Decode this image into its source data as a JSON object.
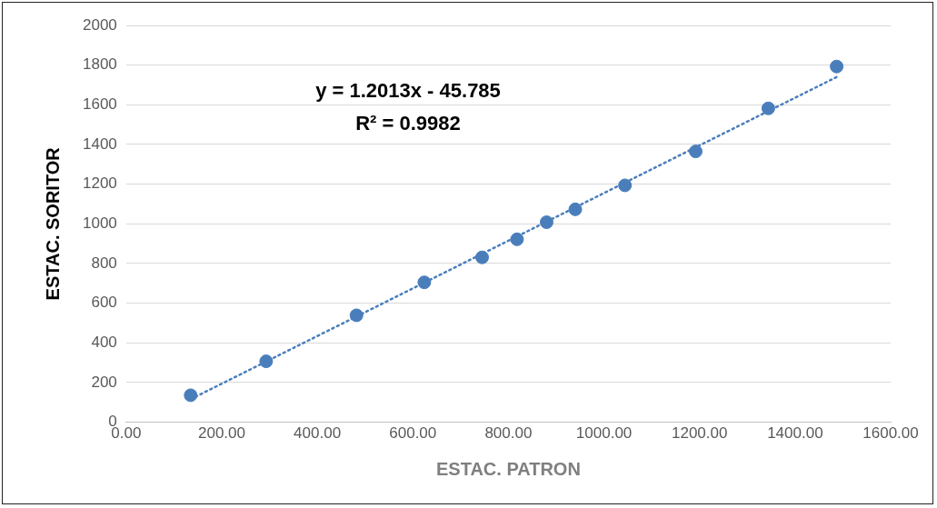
{
  "chart_data": {
    "type": "scatter",
    "xlabel": "ESTAC. PATRON",
    "ylabel": "ESTAC. SORITOR",
    "annotations": [
      "y = 1.2013x - 45.785",
      "R² = 0.9982"
    ],
    "series": [
      {
        "type": "scatter",
        "color": "#4a7ebb",
        "x": [
          135,
          293,
          482,
          624,
          745,
          818,
          880,
          940,
          1044,
          1192,
          1344,
          1487
        ],
        "values": [
          136,
          307,
          539,
          705,
          831,
          922,
          1008,
          1073,
          1194,
          1365,
          1582,
          1793
        ],
        "marker": "circle"
      },
      {
        "type": "line",
        "color": "#4a7ebb",
        "x": [
          135,
          1487
        ],
        "values": [
          116,
          1740
        ],
        "line_style": "dotted",
        "marker": "none"
      }
    ],
    "xlim": [
      0,
      1600
    ],
    "xticks": [
      {
        "value": 0,
        "label": "0.00"
      },
      {
        "value": 200,
        "label": "200.00"
      },
      {
        "value": 400,
        "label": "400.00"
      },
      {
        "value": 600,
        "label": "600.00"
      },
      {
        "value": 800,
        "label": "800.00"
      },
      {
        "value": 1000,
        "label": "1000.00"
      },
      {
        "value": 1200,
        "label": "1200.00"
      },
      {
        "value": 1400,
        "label": "1400.00"
      },
      {
        "value": 1600,
        "label": "1600.00"
      }
    ],
    "ylim": [
      0,
      2000
    ],
    "yticks": [
      0,
      200,
      400,
      600,
      800,
      1000,
      1200,
      1400,
      1600,
      1800,
      2000
    ],
    "grid": "y",
    "legend": false
  }
}
